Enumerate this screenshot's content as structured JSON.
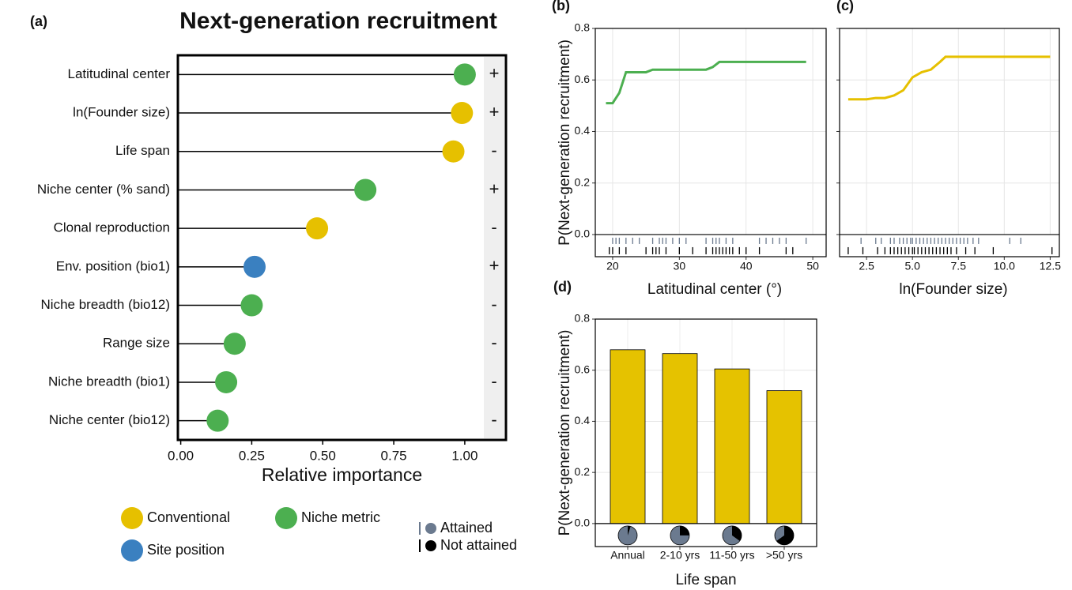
{
  "chart_data": [
    {
      "type": "lollipop",
      "panel": "(a)",
      "title": "Next-generation recruitment",
      "categories": [
        "Latitudinal center",
        "ln(Founder size)",
        "Life span",
        "Niche center (% sand)",
        "Clonal reproduction",
        "Env. position (bio1)",
        "Niche breadth (bio12)",
        "Range size",
        "Niche breadth (bio1)",
        "Niche center (bio12)"
      ],
      "values": [
        1.0,
        0.99,
        0.96,
        0.65,
        0.48,
        0.26,
        0.25,
        0.19,
        0.16,
        0.13
      ],
      "colors": [
        "#4caf50",
        "#e6c000",
        "#e6c000",
        "#4caf50",
        "#e6c000",
        "#3a80c0",
        "#4caf50",
        "#4caf50",
        "#4caf50",
        "#4caf50"
      ],
      "signs": [
        "+",
        "+",
        "-",
        "+",
        "-",
        "+",
        "-",
        "-",
        "-",
        "-"
      ],
      "xlabel": "Relative importance",
      "xlim": [
        -0.01,
        1.145
      ],
      "xticks": [
        {
          "value": 0,
          "label": "0.00"
        },
        0.25,
        {
          "value": 0.5,
          "label": "0.50"
        },
        0.75,
        {
          "value": 1,
          "label": "1.00"
        }
      ],
      "legend": [
        {
          "name": "Conventional",
          "color": "#e6c000"
        },
        {
          "name": "Niche metric",
          "color": "#4caf50"
        },
        {
          "name": "Site position",
          "color": "#3a80c0"
        }
      ],
      "rug_legend": [
        {
          "name": "Attained",
          "color": "#6b7a8f"
        },
        {
          "name": "Not attained",
          "color": "#000000"
        }
      ]
    },
    {
      "type": "line",
      "panel": "(b)",
      "ylabel": "P(Next-generation recruitment)",
      "xlabel": "Latitudinal center (°)",
      "color": "#4caf50",
      "x": [
        19,
        20,
        21,
        22,
        24,
        25,
        26,
        28,
        30,
        32,
        34,
        35,
        36,
        40,
        42,
        45,
        49
      ],
      "values": [
        0.51,
        0.51,
        0.55,
        0.63,
        0.63,
        0.63,
        0.64,
        0.64,
        0.64,
        0.64,
        0.64,
        0.65,
        0.67,
        0.67,
        0.67,
        0.67,
        0.67
      ],
      "xlim": [
        17.4,
        52
      ],
      "xticks": [
        20,
        30,
        40,
        50
      ],
      "ylim": [
        -0.086,
        0.8
      ],
      "yticks": [
        {
          "value": 0,
          "label": "0.0"
        },
        0.2,
        0.4,
        0.6,
        0.8
      ],
      "ytick_labels": true,
      "rug_attained": [
        20,
        20.5,
        21,
        22,
        23,
        24,
        26,
        27,
        27.5,
        28,
        29,
        30,
        31,
        34,
        35,
        35.5,
        36,
        37,
        38,
        42,
        43,
        44,
        45,
        46,
        49
      ],
      "rug_not_attained": [
        19.5,
        20,
        21,
        22,
        25,
        26,
        26.5,
        27,
        28,
        30,
        32,
        34,
        35,
        35.5,
        36,
        36.5,
        37,
        37.5,
        38,
        39,
        40,
        42,
        46,
        47
      ]
    },
    {
      "type": "line",
      "panel": "(c)",
      "xlabel": "ln(Founder size)",
      "color": "#e6c000",
      "x": [
        1.5,
        2.5,
        3,
        3.5,
        4,
        4.5,
        5,
        5.5,
        6,
        6.5,
        6.8,
        7.5,
        9,
        12.5
      ],
      "values": [
        0.525,
        0.525,
        0.53,
        0.53,
        0.54,
        0.56,
        0.61,
        0.63,
        0.64,
        0.67,
        0.69,
        0.69,
        0.69,
        0.69
      ],
      "xlim": [
        1.03,
        13.0
      ],
      "xticks": [
        2.5,
        {
          "value": 5,
          "label": "5.0"
        },
        7.5,
        {
          "value": 10,
          "label": "10.0"
        },
        12.5
      ],
      "ylim": [
        -0.086,
        0.8
      ],
      "yticks": [
        0,
        0.2,
        0.4,
        0.6,
        0.8
      ],
      "ytick_labels": false,
      "rug_attained": [
        2.2,
        3,
        3.3,
        3.8,
        4,
        4.3,
        4.5,
        4.7,
        4.9,
        5,
        5.2,
        5.4,
        5.6,
        5.8,
        6,
        6.2,
        6.4,
        6.6,
        6.8,
        7,
        7.2,
        7.4,
        7.6,
        7.8,
        8,
        8.3,
        8.6,
        10.3,
        10.9
      ],
      "rug_not_attained": [
        1.5,
        2.3,
        3.1,
        3.5,
        3.8,
        4,
        4.2,
        4.4,
        4.6,
        4.8,
        5,
        5.1,
        5.3,
        5.5,
        5.7,
        5.9,
        6.1,
        6.3,
        6.5,
        6.7,
        6.9,
        7.1,
        7.4,
        7.9,
        8.4,
        9.4,
        12.6
      ]
    },
    {
      "type": "bar",
      "panel": "(d)",
      "ylabel": "P(Next-generation recruitment)",
      "xlabel": "Life span",
      "color": "#e5c200",
      "categories": [
        "Annual",
        "2-10 yrs",
        "11-50 yrs",
        ">50 yrs"
      ],
      "values": [
        0.68,
        0.665,
        0.605,
        0.52
      ],
      "pie_not_attained": [
        0.05,
        0.25,
        0.35,
        0.65
      ],
      "ylim": [
        -0.09,
        0.8
      ],
      "yticks": [
        {
          "value": 0,
          "label": "0.0"
        },
        0.2,
        0.4,
        0.6,
        0.8
      ]
    }
  ]
}
